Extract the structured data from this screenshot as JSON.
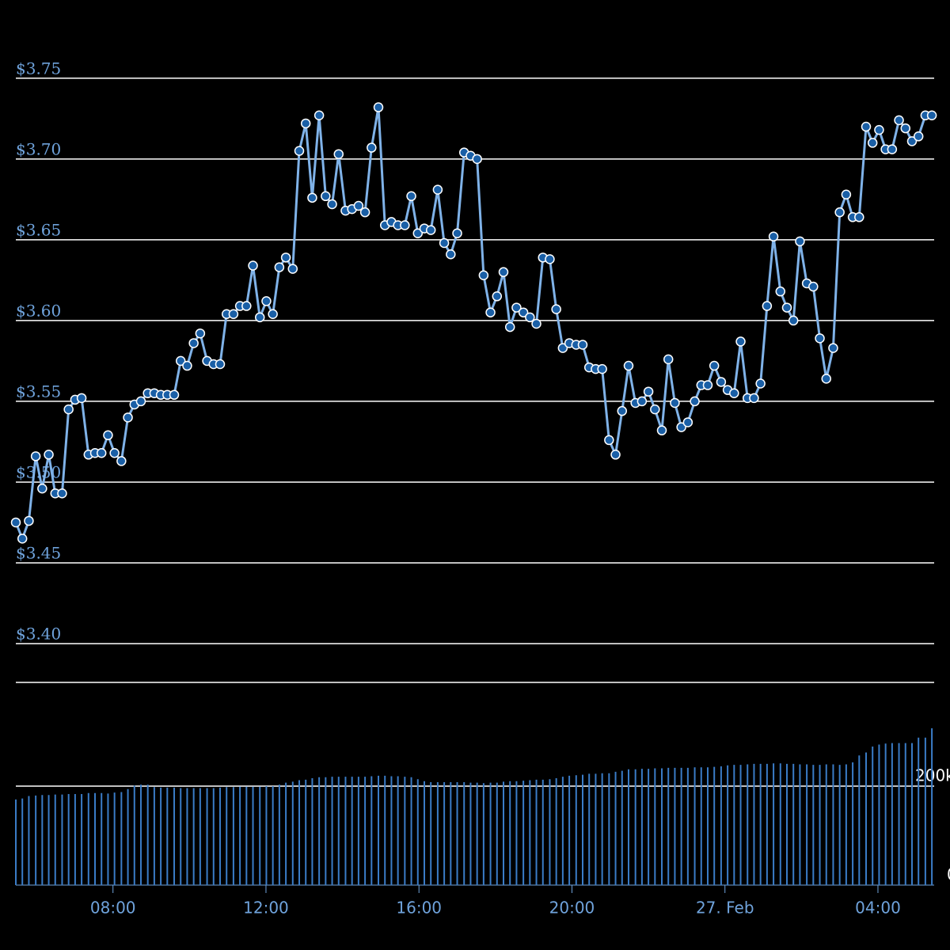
{
  "chart_data": {
    "type": "line",
    "x": [
      5.46,
      5.63,
      5.8,
      5.98,
      6.15,
      6.32,
      6.49,
      6.67,
      6.84,
      7.01,
      7.18,
      7.36,
      7.53,
      7.7,
      7.87,
      8.04,
      8.22,
      8.39,
      8.56,
      8.73,
      8.91,
      9.08,
      9.25,
      9.42,
      9.6,
      9.77,
      9.94,
      10.11,
      10.28,
      10.46,
      10.63,
      10.8,
      10.97,
      11.15,
      11.32,
      11.49,
      11.66,
      11.84,
      12.01,
      12.18,
      12.35,
      12.52,
      12.7,
      12.87,
      13.04,
      13.21,
      13.39,
      13.56,
      13.73,
      13.9,
      14.08,
      14.25,
      14.42,
      14.59,
      14.76,
      14.94,
      15.11,
      15.28,
      15.45,
      15.63,
      15.8,
      15.97,
      16.14,
      16.31,
      16.49,
      16.66,
      16.83,
      17.0,
      17.18,
      17.35,
      17.52,
      17.69,
      17.87,
      18.04,
      18.21,
      18.38,
      18.55,
      18.73,
      18.9,
      19.07,
      19.24,
      19.42,
      19.59,
      19.76,
      19.93,
      20.11,
      20.28,
      20.45,
      20.62,
      20.79,
      20.97,
      21.14,
      21.31,
      21.48,
      21.66,
      21.83,
      22.0,
      22.17,
      22.35,
      22.52,
      22.69,
      22.86,
      23.03,
      23.21,
      23.38,
      23.55,
      23.72,
      23.9,
      24.07,
      24.24,
      24.41,
      24.59,
      24.76,
      24.93,
      25.1,
      25.27,
      25.45,
      25.62,
      25.79,
      25.96,
      26.14,
      26.31,
      26.48,
      26.65,
      26.83,
      27.0,
      27.17,
      27.34,
      27.51,
      27.69,
      27.86,
      28.03,
      28.2,
      28.37,
      28.55,
      28.72,
      28.89,
      29.06,
      29.24,
      29.41
    ],
    "xlim": [
      5.46,
      29.47
    ],
    "xticks": [
      {
        "value": 8,
        "label": "08:00"
      },
      {
        "value": 12,
        "label": "12:00"
      },
      {
        "value": 16,
        "label": "16:00"
      },
      {
        "value": 20,
        "label": "20:00"
      },
      {
        "value": 24,
        "label": "27. Feb"
      },
      {
        "value": 28,
        "label": "04:00"
      }
    ],
    "ylim": [
      3.376,
      3.77
    ],
    "yticks": [
      {
        "value": 3.4,
        "label": "$3.40"
      },
      {
        "value": 3.45,
        "label": "$3.45"
      },
      {
        "value": 3.5,
        "label": "$3.50"
      },
      {
        "value": 3.55,
        "label": "$3.55"
      },
      {
        "value": 3.6,
        "label": "$3.60"
      },
      {
        "value": 3.65,
        "label": "$3.65"
      },
      {
        "value": 3.7,
        "label": "$3.70"
      },
      {
        "value": 3.75,
        "label": "$3.75"
      }
    ],
    "y2lim": [
      0,
      400000
    ],
    "y2ticks": [
      0,
      {
        "value": 200000,
        "label": "200k"
      }
    ],
    "grid": true,
    "series": [
      {
        "color": "#7fb2e8",
        "marker_color": "#1a5fa6",
        "values": [
          3.475,
          3.465,
          3.476,
          3.516,
          3.496,
          3.517,
          3.493,
          3.493,
          3.545,
          3.551,
          3.552,
          3.517,
          3.518,
          3.518,
          3.529,
          3.518,
          3.513,
          3.54,
          3.548,
          3.55,
          3.555,
          3.555,
          3.554,
          3.554,
          3.554,
          3.575,
          3.572,
          3.586,
          3.592,
          3.575,
          3.573,
          3.573,
          3.604,
          3.604,
          3.609,
          3.609,
          3.634,
          3.602,
          3.612,
          3.604,
          3.633,
          3.639,
          3.632,
          3.705,
          3.722,
          3.676,
          3.727,
          3.677,
          3.672,
          3.703,
          3.668,
          3.669,
          3.671,
          3.667,
          3.707,
          3.732,
          3.659,
          3.661,
          3.659,
          3.659,
          3.677,
          3.654,
          3.657,
          3.656,
          3.681,
          3.648,
          3.641,
          3.654,
          3.704,
          3.702,
          3.7,
          3.628,
          3.605,
          3.615,
          3.63,
          3.596,
          3.608,
          3.605,
          3.602,
          3.598,
          3.639,
          3.638,
          3.607,
          3.583,
          3.586,
          3.585,
          3.585,
          3.571,
          3.57,
          3.57,
          3.526,
          3.517,
          3.544,
          3.572,
          3.549,
          3.55,
          3.556,
          3.545,
          3.532,
          3.576,
          3.549,
          3.534,
          3.537,
          3.55,
          3.56,
          3.56,
          3.572,
          3.562,
          3.557,
          3.555,
          3.587,
          3.552,
          3.552,
          3.561,
          3.609,
          3.652,
          3.618,
          3.608,
          3.6,
          3.649,
          3.623,
          3.621,
          3.589,
          3.564,
          3.583,
          3.667,
          3.678,
          3.664,
          3.664,
          3.72,
          3.71,
          3.718,
          3.706,
          3.706,
          3.724,
          3.719,
          3.711,
          3.714,
          3.727,
          3.727
        ]
      },
      {
        "type": "bar",
        "axis": "y2",
        "color": "#3a7cc7",
        "values": [
          173000,
          175000,
          180000,
          181000,
          182000,
          182000,
          183000,
          183000,
          184000,
          184000,
          184000,
          186000,
          186000,
          186000,
          185000,
          187000,
          188000,
          194000,
          201000,
          203000,
          203000,
          198000,
          197000,
          197000,
          197000,
          196000,
          196000,
          196000,
          196000,
          196000,
          196000,
          197000,
          198000,
          198000,
          199000,
          199000,
          199000,
          199000,
          200000,
          200000,
          203000,
          207000,
          209000,
          212000,
          213000,
          216000,
          218000,
          218000,
          219000,
          219000,
          219000,
          219000,
          219000,
          219000,
          220000,
          221000,
          221000,
          220000,
          220000,
          219000,
          218000,
          214000,
          210000,
          208000,
          208000,
          208000,
          208000,
          208000,
          208000,
          207000,
          207000,
          206000,
          207000,
          207000,
          209000,
          210000,
          210000,
          211000,
          212000,
          213000,
          213000,
          214000,
          216000,
          219000,
          221000,
          222000,
          223000,
          225000,
          225000,
          226000,
          226000,
          229000,
          231000,
          234000,
          234000,
          235000,
          235000,
          236000,
          236000,
          237000,
          237000,
          237000,
          237000,
          238000,
          238000,
          238000,
          239000,
          240000,
          242000,
          243000,
          243000,
          244000,
          245000,
          245000,
          245000,
          246000,
          246000,
          245000,
          245000,
          244000,
          244000,
          243000,
          243000,
          244000,
          244000,
          243000,
          244000,
          248000,
          262000,
          268000,
          280000,
          284000,
          286000,
          287000,
          287000,
          287000,
          287000,
          298000,
          298000,
          317000
        ]
      }
    ]
  }
}
